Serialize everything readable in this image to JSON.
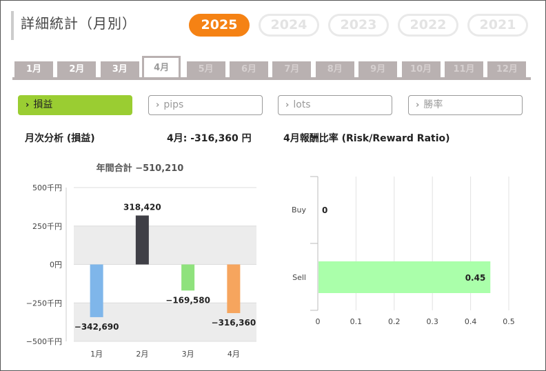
{
  "title": "詳細統計（月別）",
  "years": [
    "2025",
    "2024",
    "2023",
    "2022",
    "2021"
  ],
  "active_year": "2025",
  "months": [
    "1月",
    "2月",
    "3月",
    "4月",
    "5月",
    "6月",
    "7月",
    "8月",
    "9月",
    "10月",
    "11月",
    "12月"
  ],
  "active_month": "4月",
  "filters": [
    {
      "label": "損益",
      "active": true
    },
    {
      "label": "pips",
      "active": false
    },
    {
      "label": "lots",
      "active": false
    },
    {
      "label": "勝率",
      "active": false
    }
  ],
  "monthly_section": {
    "title": "月次分析 (損益)",
    "month_summary": "4月:  -316,360 円"
  },
  "rr_section": {
    "title": "4月報酬比率 (Risk/Reward Ratio)"
  },
  "colors": {
    "accent_orange": "#f58214",
    "filter_green": "#9acd32",
    "tab_gray": "#b9b1b1",
    "bar_blue": "#7fb6ea",
    "bar_dark": "#3f3f46",
    "bar_green": "#8fe27d",
    "bar_orange": "#f6a55e",
    "bar_lightgreen": "#aaffaa"
  },
  "chart_data": [
    {
      "type": "bar",
      "title": "年間合計 −510,210",
      "categories": [
        "1月",
        "2月",
        "3月",
        "4月"
      ],
      "values": [
        -342690,
        318420,
        -169580,
        -316360
      ],
      "value_labels": [
        "−342,690",
        "318,420",
        "−169,580",
        "−316,360"
      ],
      "yticks": [
        "500千円",
        "250千円",
        "0円",
        "−250千円",
        "−500千円"
      ],
      "ytick_values": [
        500000,
        250000,
        0,
        -250000,
        -500000
      ],
      "ylim": [
        -500000,
        500000
      ]
    },
    {
      "type": "bar",
      "orientation": "horizontal",
      "categories": [
        "Buy",
        "Sell"
      ],
      "values": [
        0,
        0.45
      ],
      "value_labels": [
        "0",
        "0.45"
      ],
      "xticks": [
        "0",
        "0.1",
        "0.2",
        "0.3",
        "0.4",
        "0.5"
      ],
      "xtick_values": [
        0,
        0.1,
        0.2,
        0.3,
        0.4,
        0.5
      ],
      "xlim": [
        0,
        0.5
      ]
    }
  ]
}
